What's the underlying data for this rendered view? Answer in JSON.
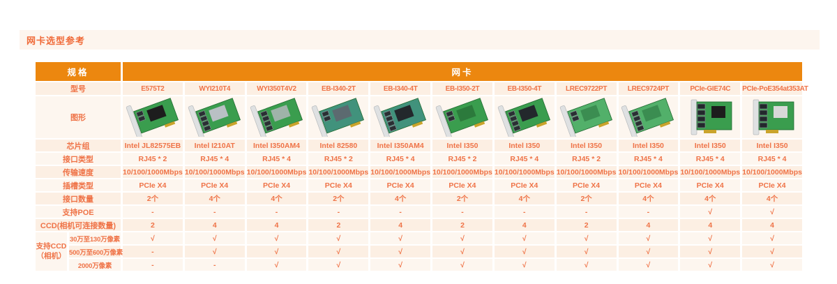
{
  "title": "网卡选型参考",
  "colors": {
    "header_bg": "#EC870F",
    "accent_text": "#EF7347",
    "title_text": "#F06A38",
    "row_dark": "#FCEFE3",
    "row_light": "#FDF6EF",
    "band_bg": "#FDF5EE",
    "header_text": "#FFFFFF"
  },
  "table": {
    "spec_header": "规格",
    "nic_header": "网卡",
    "model_row": {
      "label": "型号",
      "values": [
        "E575T2",
        "WYI210T4",
        "WYI350T4V2",
        "EB-I340-2T",
        "EB-I340-4T",
        "EB-I350-2T",
        "EB-I350-4T",
        "LREC9722PT",
        "LREC9724PT",
        "PCIe-GIE74C",
        "PCIe-PoE354at353AT"
      ]
    },
    "image_row": {
      "label": "图形",
      "cards": [
        {
          "name": "nic-card-E575T2",
          "view": "tilted",
          "ports": 2,
          "pcb": "#3a9d4e",
          "heatsink": "#1d1d1d"
        },
        {
          "name": "nic-card-WYI210T4",
          "view": "tilted",
          "ports": 4,
          "pcb": "#3a9d4e",
          "heatsink": "#b9c0c4"
        },
        {
          "name": "nic-card-WYI350T4V2",
          "view": "tilted",
          "ports": 4,
          "pcb": "#3a9d4e",
          "heatsink": "#9fb3a9"
        },
        {
          "name": "nic-card-EB-I340-2T",
          "view": "tilted",
          "ports": 2,
          "pcb": "#41927c",
          "heatsink": "#5c6a70"
        },
        {
          "name": "nic-card-EB-I340-4T",
          "view": "tilted",
          "ports": 4,
          "pcb": "#41927c",
          "heatsink": "#23282c"
        },
        {
          "name": "nic-card-EB-I350-2T",
          "view": "tilted",
          "ports": 2,
          "pcb": "#3a9d4e",
          "heatsink": "#2c7a3c"
        },
        {
          "name": "nic-card-EB-I350-4T",
          "view": "tilted",
          "ports": 4,
          "pcb": "#3a9d4e",
          "heatsink": "#23282c"
        },
        {
          "name": "nic-card-LREC9722PT",
          "view": "tilted",
          "ports": 2,
          "pcb": "#52b06a",
          "heatsink": "#3b8d51"
        },
        {
          "name": "nic-card-LREC9724PT",
          "view": "tilted",
          "ports": 4,
          "pcb": "#52b06a",
          "heatsink": "#3b8d51"
        },
        {
          "name": "nic-card-PCIe-GIE74C",
          "view": "front",
          "ports": 4,
          "pcb": "#3a9d4e",
          "heatsink": "#1d1d1d"
        },
        {
          "name": "nic-card-PCIe-PoE354at353AT",
          "view": "front",
          "ports": 4,
          "pcb": "#3a9d4e",
          "heatsink": "#d8d8d8"
        }
      ]
    },
    "rows": [
      {
        "label": "芯片组",
        "values": [
          "Intel JL82575EB",
          "Intel I210AT",
          "Intel I350AM4",
          "Intel 82580",
          "Intel I350AM4",
          "Intel I350",
          "Intel I350",
          "Intel I350",
          "Intel I350",
          "Intel I350",
          "Intel I350"
        ]
      },
      {
        "label": "接口类型",
        "values": [
          "RJ45 * 2",
          "RJ45 * 4",
          "RJ45 * 4",
          "RJ45 * 2",
          "RJ45 * 4",
          "RJ45 * 2",
          "RJ45 * 4",
          "RJ45 * 2",
          "RJ45 * 4",
          "RJ45 * 4",
          "RJ45 * 4"
        ]
      },
      {
        "label": "传输速度",
        "values": [
          "10/100/1000Mbps",
          "10/100/1000Mbps",
          "10/100/1000Mbps",
          "10/100/1000Mbps",
          "10/100/1000Mbps",
          "10/100/1000Mbps",
          "10/100/1000Mbps",
          "10/100/1000Mbps",
          "10/100/1000Mbps",
          "10/100/1000Mbps",
          "10/100/1000Mbps"
        ]
      },
      {
        "label": "插槽类型",
        "values": [
          "PCIe X4",
          "PCIe X4",
          "PCIe X4",
          "PCIe X4",
          "PCIe X4",
          "PCIe X4",
          "PCIe X4",
          "PCIe X4",
          "PCIe X4",
          "PCIe X4",
          "PCIe X4"
        ]
      },
      {
        "label": "接口数量",
        "values": [
          "2个",
          "4个",
          "4个",
          "2个",
          "4个",
          "2个",
          "4个",
          "2个",
          "4个",
          "4个",
          "4个"
        ]
      },
      {
        "label": "支持POE",
        "values": [
          "-",
          "-",
          "-",
          "-",
          "-",
          "-",
          "-",
          "-",
          "-",
          "√",
          "√"
        ]
      },
      {
        "label": "CCD(相机可连接数量)",
        "values": [
          "2",
          "4",
          "4",
          "2",
          "4",
          "2",
          "4",
          "2",
          "4",
          "4",
          "4"
        ]
      }
    ],
    "ccd_group": {
      "label_line1": "支持CCD",
      "label_line2": "（相机）",
      "rows": [
        {
          "label": "30万至130万像素",
          "values": [
            "√",
            "√",
            "√",
            "√",
            "√",
            "√",
            "√",
            "√",
            "√",
            "√",
            "√"
          ]
        },
        {
          "label": "500万至600万像素",
          "values": [
            "-",
            "√",
            "√",
            "√",
            "√",
            "√",
            "√",
            "√",
            "√",
            "√",
            "√"
          ]
        },
        {
          "label": "2000万像素",
          "values": [
            "-",
            "-",
            "√",
            "√",
            "√",
            "√",
            "√",
            "√",
            "√",
            "√",
            "√"
          ]
        }
      ]
    }
  }
}
